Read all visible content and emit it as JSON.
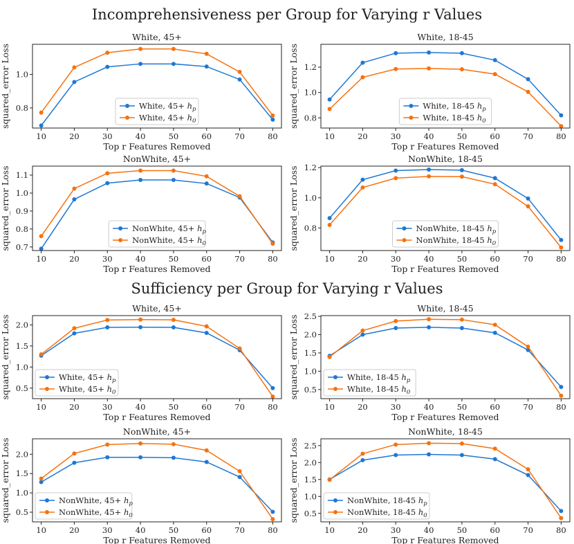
{
  "section_titles": {
    "incomprehensiveness": "Incomprehensiveness per Group for Varying r Values",
    "sufficiency": "Sufficiency per Group for Varying r Values"
  },
  "colors": {
    "hp": "#1f77d4",
    "h0": "#f5720f"
  },
  "chart_data": [
    {
      "type": "line",
      "section": "incomprehensiveness",
      "title": "White, 45+",
      "xlabel": "Top r Features Removed",
      "ylabel": "squared_error Loss",
      "x": [
        10,
        20,
        30,
        40,
        50,
        60,
        70,
        80
      ],
      "ylim": [
        0.68,
        1.18
      ],
      "yticks": [
        0.8,
        1.0
      ],
      "legend_position": "lower-center",
      "series": [
        {
          "name": "White, 45+ h_p",
          "label_prefix": "White, 45+",
          "label_sub": "p",
          "color": "#1f77d4",
          "values": [
            0.695,
            0.955,
            1.045,
            1.063,
            1.063,
            1.047,
            0.97,
            0.73
          ]
        },
        {
          "name": "White, 45+ h_0",
          "label_prefix": "White, 45+",
          "label_sub": "0",
          "color": "#f5720f",
          "values": [
            0.772,
            1.042,
            1.13,
            1.152,
            1.152,
            1.123,
            1.015,
            0.755
          ]
        }
      ]
    },
    {
      "type": "line",
      "section": "incomprehensiveness",
      "title": "White, 18-45",
      "xlabel": "Top r Features Removed",
      "ylabel": "squared_error Loss",
      "x": [
        10,
        20,
        30,
        40,
        50,
        60,
        70,
        80
      ],
      "ylim": [
        0.72,
        1.38
      ],
      "yticks": [
        0.8,
        1.0,
        1.2
      ],
      "legend_position": "lower-center",
      "series": [
        {
          "name": "White, 18-45 h_p",
          "label_prefix": "White, 18-45",
          "label_sub": "p",
          "color": "#1f77d4",
          "values": [
            0.945,
            1.235,
            1.31,
            1.315,
            1.31,
            1.255,
            1.105,
            0.82
          ]
        },
        {
          "name": "White, 18-45 h_0",
          "label_prefix": "White, 18-45",
          "label_sub": "0",
          "color": "#f5720f",
          "values": [
            0.87,
            1.12,
            1.185,
            1.19,
            1.183,
            1.145,
            1.005,
            0.735
          ]
        }
      ]
    },
    {
      "type": "line",
      "section": "incomprehensiveness",
      "title": "NonWhite, 45+",
      "xlabel": "Top r Features Removed",
      "ylabel": "squared_error Loss",
      "x": [
        10,
        20,
        30,
        40,
        50,
        60,
        70,
        80
      ],
      "ylim": [
        0.68,
        1.15
      ],
      "yticks": [
        0.7,
        0.8,
        0.9,
        1.0,
        1.1
      ],
      "legend_position": "lower-center",
      "series": [
        {
          "name": "NonWhite, 45+ h_p",
          "label_prefix": "NonWhite, 45+",
          "label_sub": "p",
          "color": "#1f77d4",
          "values": [
            0.69,
            0.965,
            1.055,
            1.073,
            1.073,
            1.053,
            0.975,
            0.725
          ]
        },
        {
          "name": "NonWhite, 45+ h_0",
          "label_prefix": "NonWhite, 45+",
          "label_sub": "0",
          "color": "#f5720f",
          "values": [
            0.76,
            1.025,
            1.11,
            1.125,
            1.125,
            1.093,
            0.982,
            0.718
          ]
        }
      ]
    },
    {
      "type": "line",
      "section": "incomprehensiveness",
      "title": "NonWhite, 18-45",
      "xlabel": "Top r Features Removed",
      "ylabel": "squared_error Loss",
      "x": [
        10,
        20,
        30,
        40,
        50,
        60,
        70,
        80
      ],
      "ylim": [
        0.65,
        1.21
      ],
      "yticks": [
        0.8,
        1.0,
        1.2
      ],
      "legend_position": "lower-center",
      "series": [
        {
          "name": "NonWhite, 18-45 h_p",
          "label_prefix": "NonWhite, 18-45",
          "label_sub": "p",
          "color": "#1f77d4",
          "values": [
            0.865,
            1.12,
            1.18,
            1.187,
            1.183,
            1.13,
            0.995,
            0.72
          ]
        },
        {
          "name": "NonWhite, 18-45 h_0",
          "label_prefix": "NonWhite, 18-45",
          "label_sub": "0",
          "color": "#f5720f",
          "values": [
            0.82,
            1.068,
            1.13,
            1.142,
            1.14,
            1.09,
            0.943,
            0.67
          ]
        }
      ]
    },
    {
      "type": "line",
      "section": "sufficiency",
      "title": "White, 45+",
      "xlabel": "Top r Features Removed",
      "ylabel": "squared_error Loss",
      "x": [
        10,
        20,
        30,
        40,
        50,
        60,
        70,
        80
      ],
      "ylim": [
        0.25,
        2.22
      ],
      "yticks": [
        0.5,
        1.0,
        1.5,
        2.0
      ],
      "legend_position": "lower-left",
      "series": [
        {
          "name": "White, 45+ h_p",
          "label_prefix": "White, 45+",
          "label_sub": "p",
          "color": "#1f77d4",
          "values": [
            1.27,
            1.8,
            1.94,
            1.945,
            1.94,
            1.81,
            1.4,
            0.5
          ]
        },
        {
          "name": "White, 45+ h_0",
          "label_prefix": "White, 45+",
          "label_sub": "0",
          "color": "#f5720f",
          "values": [
            1.3,
            1.92,
            2.115,
            2.125,
            2.12,
            1.965,
            1.44,
            0.3
          ]
        }
      ]
    },
    {
      "type": "line",
      "section": "sufficiency",
      "title": "White, 18-45",
      "xlabel": "Top r Features Removed",
      "ylabel": "squared_error Loss",
      "x": [
        10,
        20,
        30,
        40,
        50,
        60,
        70,
        80
      ],
      "ylim": [
        0.25,
        2.52
      ],
      "yticks": [
        0.5,
        1.0,
        1.5,
        2.0,
        2.5
      ],
      "legend_position": "lower-left",
      "series": [
        {
          "name": "White, 18-45 h_p",
          "label_prefix": "White, 18-45",
          "label_sub": "p",
          "color": "#1f77d4",
          "values": [
            1.42,
            2.0,
            2.18,
            2.2,
            2.18,
            2.05,
            1.58,
            0.57
          ]
        },
        {
          "name": "White, 18-45 h_0",
          "label_prefix": "White, 18-45",
          "label_sub": "0",
          "color": "#f5720f",
          "values": [
            1.39,
            2.11,
            2.37,
            2.42,
            2.41,
            2.27,
            1.67,
            0.33
          ]
        }
      ]
    },
    {
      "type": "line",
      "section": "sufficiency",
      "title": "NonWhite, 45+",
      "xlabel": "Top r Features Removed",
      "ylabel": "squared_error Loss",
      "x": [
        10,
        20,
        30,
        40,
        50,
        60,
        70,
        80
      ],
      "ylim": [
        0.25,
        2.4
      ],
      "yticks": [
        0.5,
        1.0,
        1.5,
        2.0
      ],
      "legend_position": "lower-left",
      "series": [
        {
          "name": "NonWhite, 45+ h_p",
          "label_prefix": "NonWhite, 45+",
          "label_sub": "p",
          "color": "#1f77d4",
          "values": [
            1.28,
            1.78,
            1.92,
            1.92,
            1.91,
            1.8,
            1.41,
            0.51
          ]
        },
        {
          "name": "NonWhite, 45+ h_0",
          "label_prefix": "NonWhite, 45+",
          "label_sub": "0",
          "color": "#f5720f",
          "values": [
            1.37,
            2.02,
            2.25,
            2.28,
            2.26,
            2.1,
            1.56,
            0.32
          ]
        }
      ]
    },
    {
      "type": "line",
      "section": "sufficiency",
      "title": "NonWhite, 18-45",
      "xlabel": "Top r Features Removed",
      "ylabel": "squared_error Loss",
      "x": [
        10,
        20,
        30,
        40,
        50,
        60,
        70,
        80
      ],
      "ylim": [
        0.25,
        2.7
      ],
      "yticks": [
        0.5,
        1.0,
        1.5,
        2.0,
        2.5
      ],
      "legend_position": "lower-left",
      "series": [
        {
          "name": "NonWhite, 18-45 h_p",
          "label_prefix": "NonWhite, 18-45",
          "label_sub": "p",
          "color": "#1f77d4",
          "values": [
            1.5,
            2.07,
            2.22,
            2.24,
            2.22,
            2.1,
            1.63,
            0.57
          ]
        },
        {
          "name": "NonWhite, 18-45 h_0",
          "label_prefix": "NonWhite, 18-45",
          "label_sub": "0",
          "color": "#f5720f",
          "values": [
            1.49,
            2.26,
            2.53,
            2.57,
            2.56,
            2.41,
            1.8,
            0.36
          ]
        }
      ]
    }
  ]
}
